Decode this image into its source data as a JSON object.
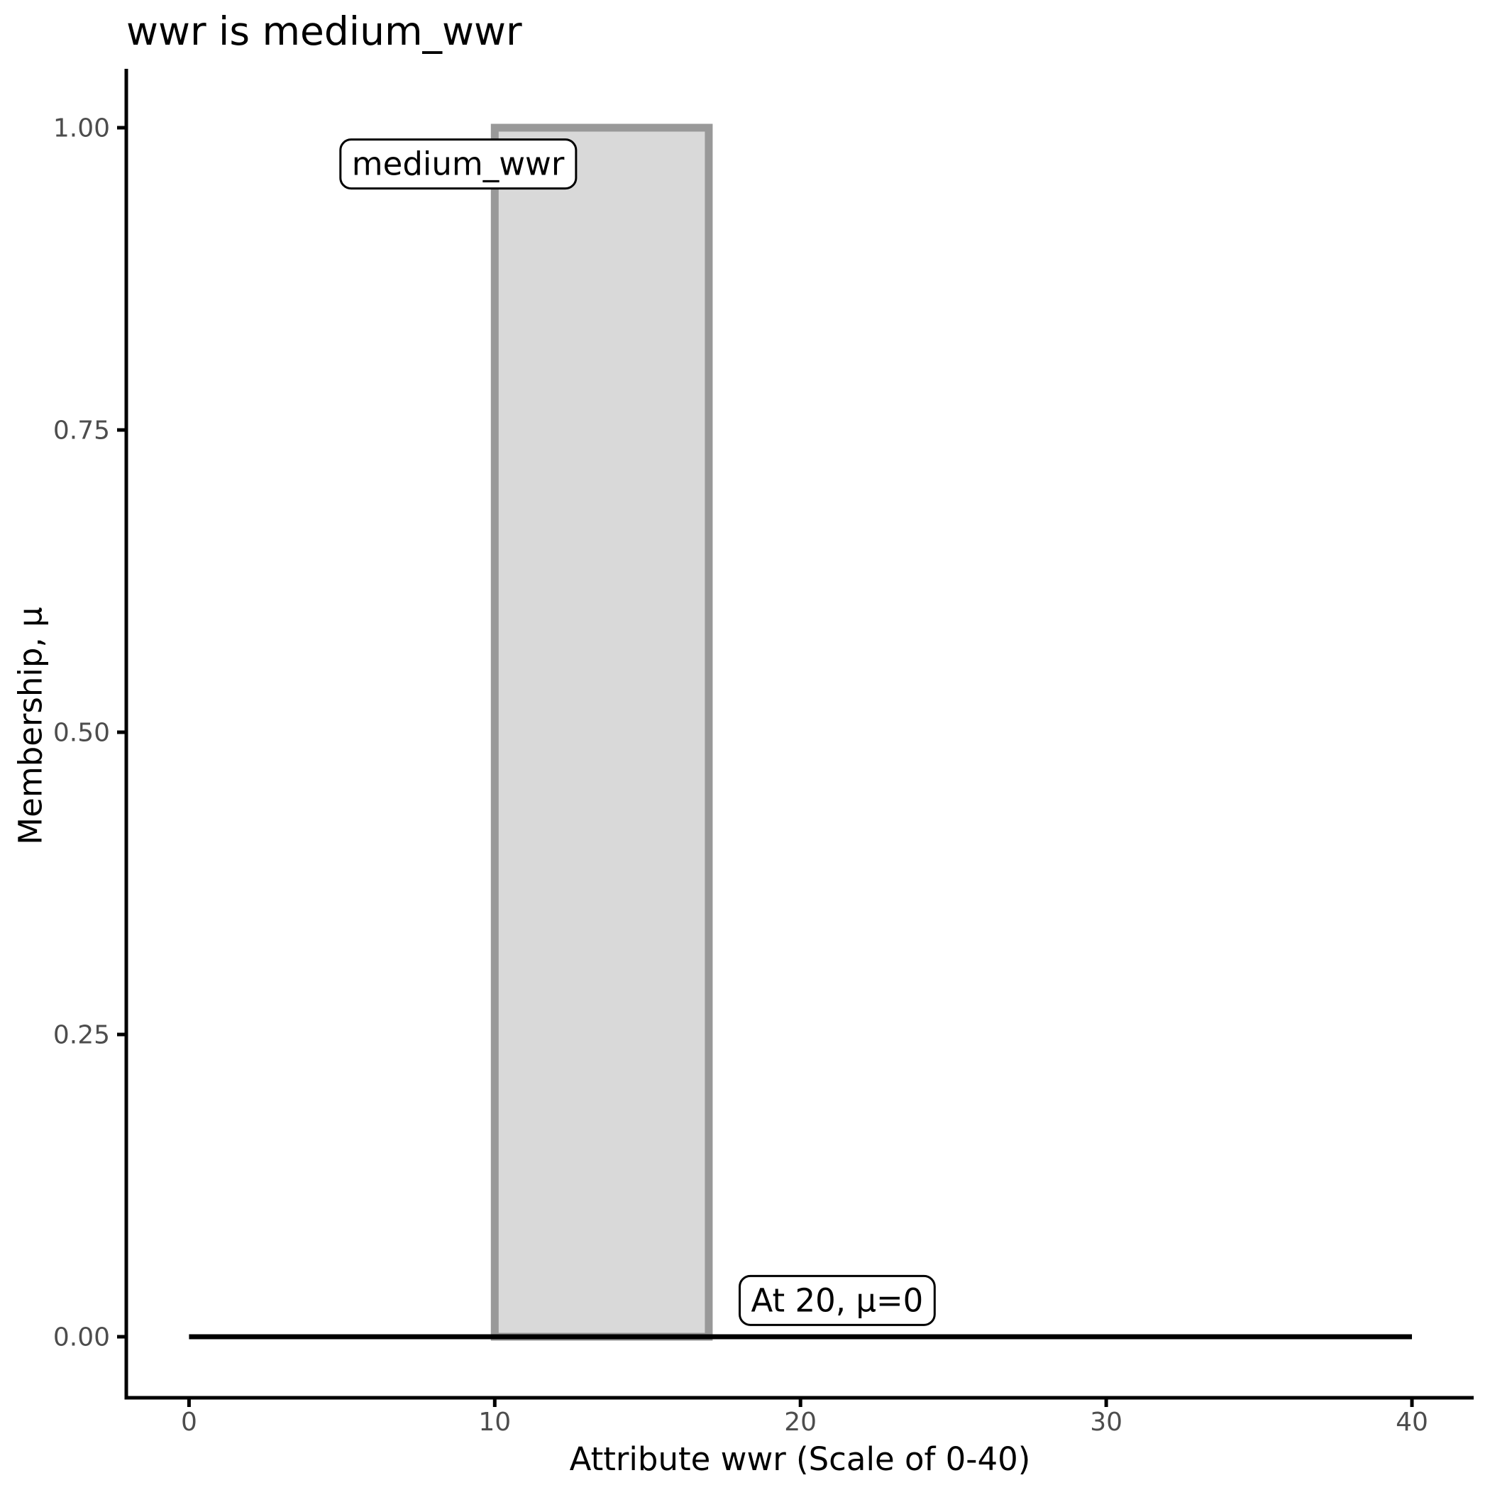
{
  "chart_data": {
    "type": "area",
    "title": "wwr is medium_wwr",
    "xlabel": "Attribute wwr (Scale of 0-40)",
    "ylabel": "Membership, μ",
    "xlim": [
      0,
      40
    ],
    "ylim": [
      0,
      1
    ],
    "grid": "off",
    "legend": "none",
    "x_ticks": {
      "values": [
        0,
        10,
        20,
        30,
        40
      ],
      "labels": [
        "0",
        "10",
        "20",
        "30",
        "40"
      ]
    },
    "y_ticks": {
      "values": [
        0,
        0.25,
        0.5,
        0.75,
        1
      ],
      "labels": [
        "0.00",
        "0.25",
        "0.50",
        "0.75",
        "1.00"
      ]
    },
    "fuzzy_set": {
      "name": "medium_wwr",
      "shape": "rectangular",
      "x_start": 10,
      "x_end": 17,
      "membership_height": 1
    },
    "baseline": {
      "mu": 0,
      "x_start": 0,
      "x_end": 40
    },
    "membership_function_points": [
      [
        0,
        0
      ],
      [
        10,
        0
      ],
      [
        10,
        1
      ],
      [
        17,
        1
      ],
      [
        17,
        0
      ],
      [
        40,
        0
      ]
    ],
    "annotations": [
      {
        "id": "set-label",
        "text": "medium_wwr",
        "x": 8.8,
        "mu": 0.97
      },
      {
        "id": "point-label",
        "text": "At 20, μ=0",
        "x": 21.2,
        "mu": 0.03
      }
    ],
    "colors": {
      "set_fill": "#D9D9D9",
      "set_stroke": "#999999",
      "baseline": "#000000",
      "axis": "#000000",
      "tick_label": "#4D4D4D",
      "annotation_bg": "#FFFFFF",
      "annotation_border": "#000000",
      "title": "#000000"
    }
  }
}
